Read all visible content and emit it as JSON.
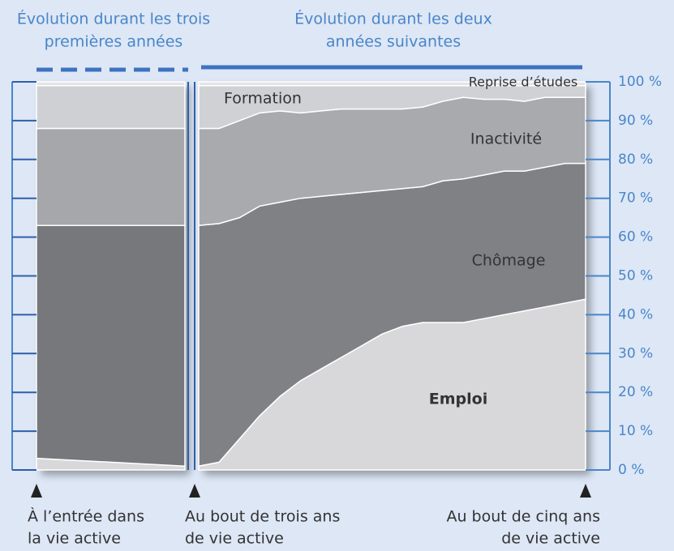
{
  "chart_data": [
    {
      "type": "area",
      "title_lines": [
        "Évolution durant les trois",
        "premières années"
      ],
      "categories": [
        null,
        null
      ],
      "series": [
        {
          "color": "#d8d8da",
          "values": [
            3,
            1
          ]
        },
        {
          "color": "#77787c",
          "values": [
            60,
            62
          ]
        },
        {
          "color": "#a6a7ab",
          "values": [
            25,
            25
          ]
        },
        {
          "color": "#cfd0d3",
          "values": [
            11,
            11
          ]
        },
        {
          "color": "#e4e4e6",
          "values": [
            1,
            1
          ]
        }
      ],
      "ylim": [
        0,
        100
      ]
    },
    {
      "type": "area",
      "title_lines": [
        "Évolution durant les deux",
        "années suivantes"
      ],
      "categories": [
        null,
        null,
        null,
        null,
        null,
        null,
        null,
        null,
        null,
        null,
        null,
        null,
        null,
        null,
        null,
        null,
        null,
        null,
        null,
        null
      ],
      "series": [
        {
          "name": "Emploi",
          "color": "#d8d8da",
          "values": [
            1,
            2,
            8,
            14,
            19,
            23,
            26,
            29,
            32,
            35,
            37,
            38,
            38,
            38,
            39,
            40,
            41,
            42,
            43,
            44
          ]
        },
        {
          "name": "Chômage",
          "color": "#808185",
          "values": [
            62,
            61.5,
            57,
            54,
            50,
            47,
            44.5,
            42,
            39.5,
            37,
            35.5,
            35,
            36.5,
            37,
            37,
            37,
            36,
            36,
            36,
            35
          ]
        },
        {
          "name": "Inactivité",
          "color": "#a9aaae",
          "values": [
            25,
            24.5,
            25,
            24,
            23.5,
            22,
            22,
            22,
            21.5,
            21,
            20.5,
            20.5,
            20.5,
            21,
            19.5,
            18.5,
            18,
            18,
            17,
            17
          ]
        },
        {
          "name": "Formation",
          "color": "#d0d1d4",
          "values": [
            11,
            11,
            9,
            7,
            6.5,
            7,
            6.5,
            6,
            6,
            6,
            6,
            5.5,
            4,
            3,
            3.5,
            3.5,
            4,
            3,
            3,
            3
          ]
        },
        {
          "name": "Reprise d’études",
          "color": "#e4e4e6",
          "values": [
            1,
            1,
            1,
            1,
            1,
            1,
            1,
            1,
            1,
            1,
            1,
            1,
            1,
            1,
            1,
            1,
            1,
            1,
            1,
            1
          ]
        }
      ],
      "ylim": [
        0,
        100
      ],
      "yticks": [
        {
          "value": 0,
          "label": "0 %"
        },
        {
          "value": 10,
          "label": "10 %"
        },
        {
          "value": 20,
          "label": "20 %"
        },
        {
          "value": 30,
          "label": "30 %"
        },
        {
          "value": 40,
          "label": "40 %"
        },
        {
          "value": 50,
          "label": "50 %"
        },
        {
          "value": 60,
          "label": "60 %"
        },
        {
          "value": 70,
          "label": "70 %"
        },
        {
          "value": 80,
          "label": "80 %"
        },
        {
          "value": 90,
          "label": "90 %"
        },
        {
          "value": 100,
          "label": "100 %"
        }
      ]
    }
  ],
  "annotations": [
    {
      "lines": [
        "À l’entrée dans",
        "la vie active"
      ]
    },
    {
      "lines": [
        "Au bout de trois ans",
        "de vie active"
      ]
    },
    {
      "lines": [
        "Au bout de cinq ans",
        "de vie active"
      ]
    }
  ]
}
